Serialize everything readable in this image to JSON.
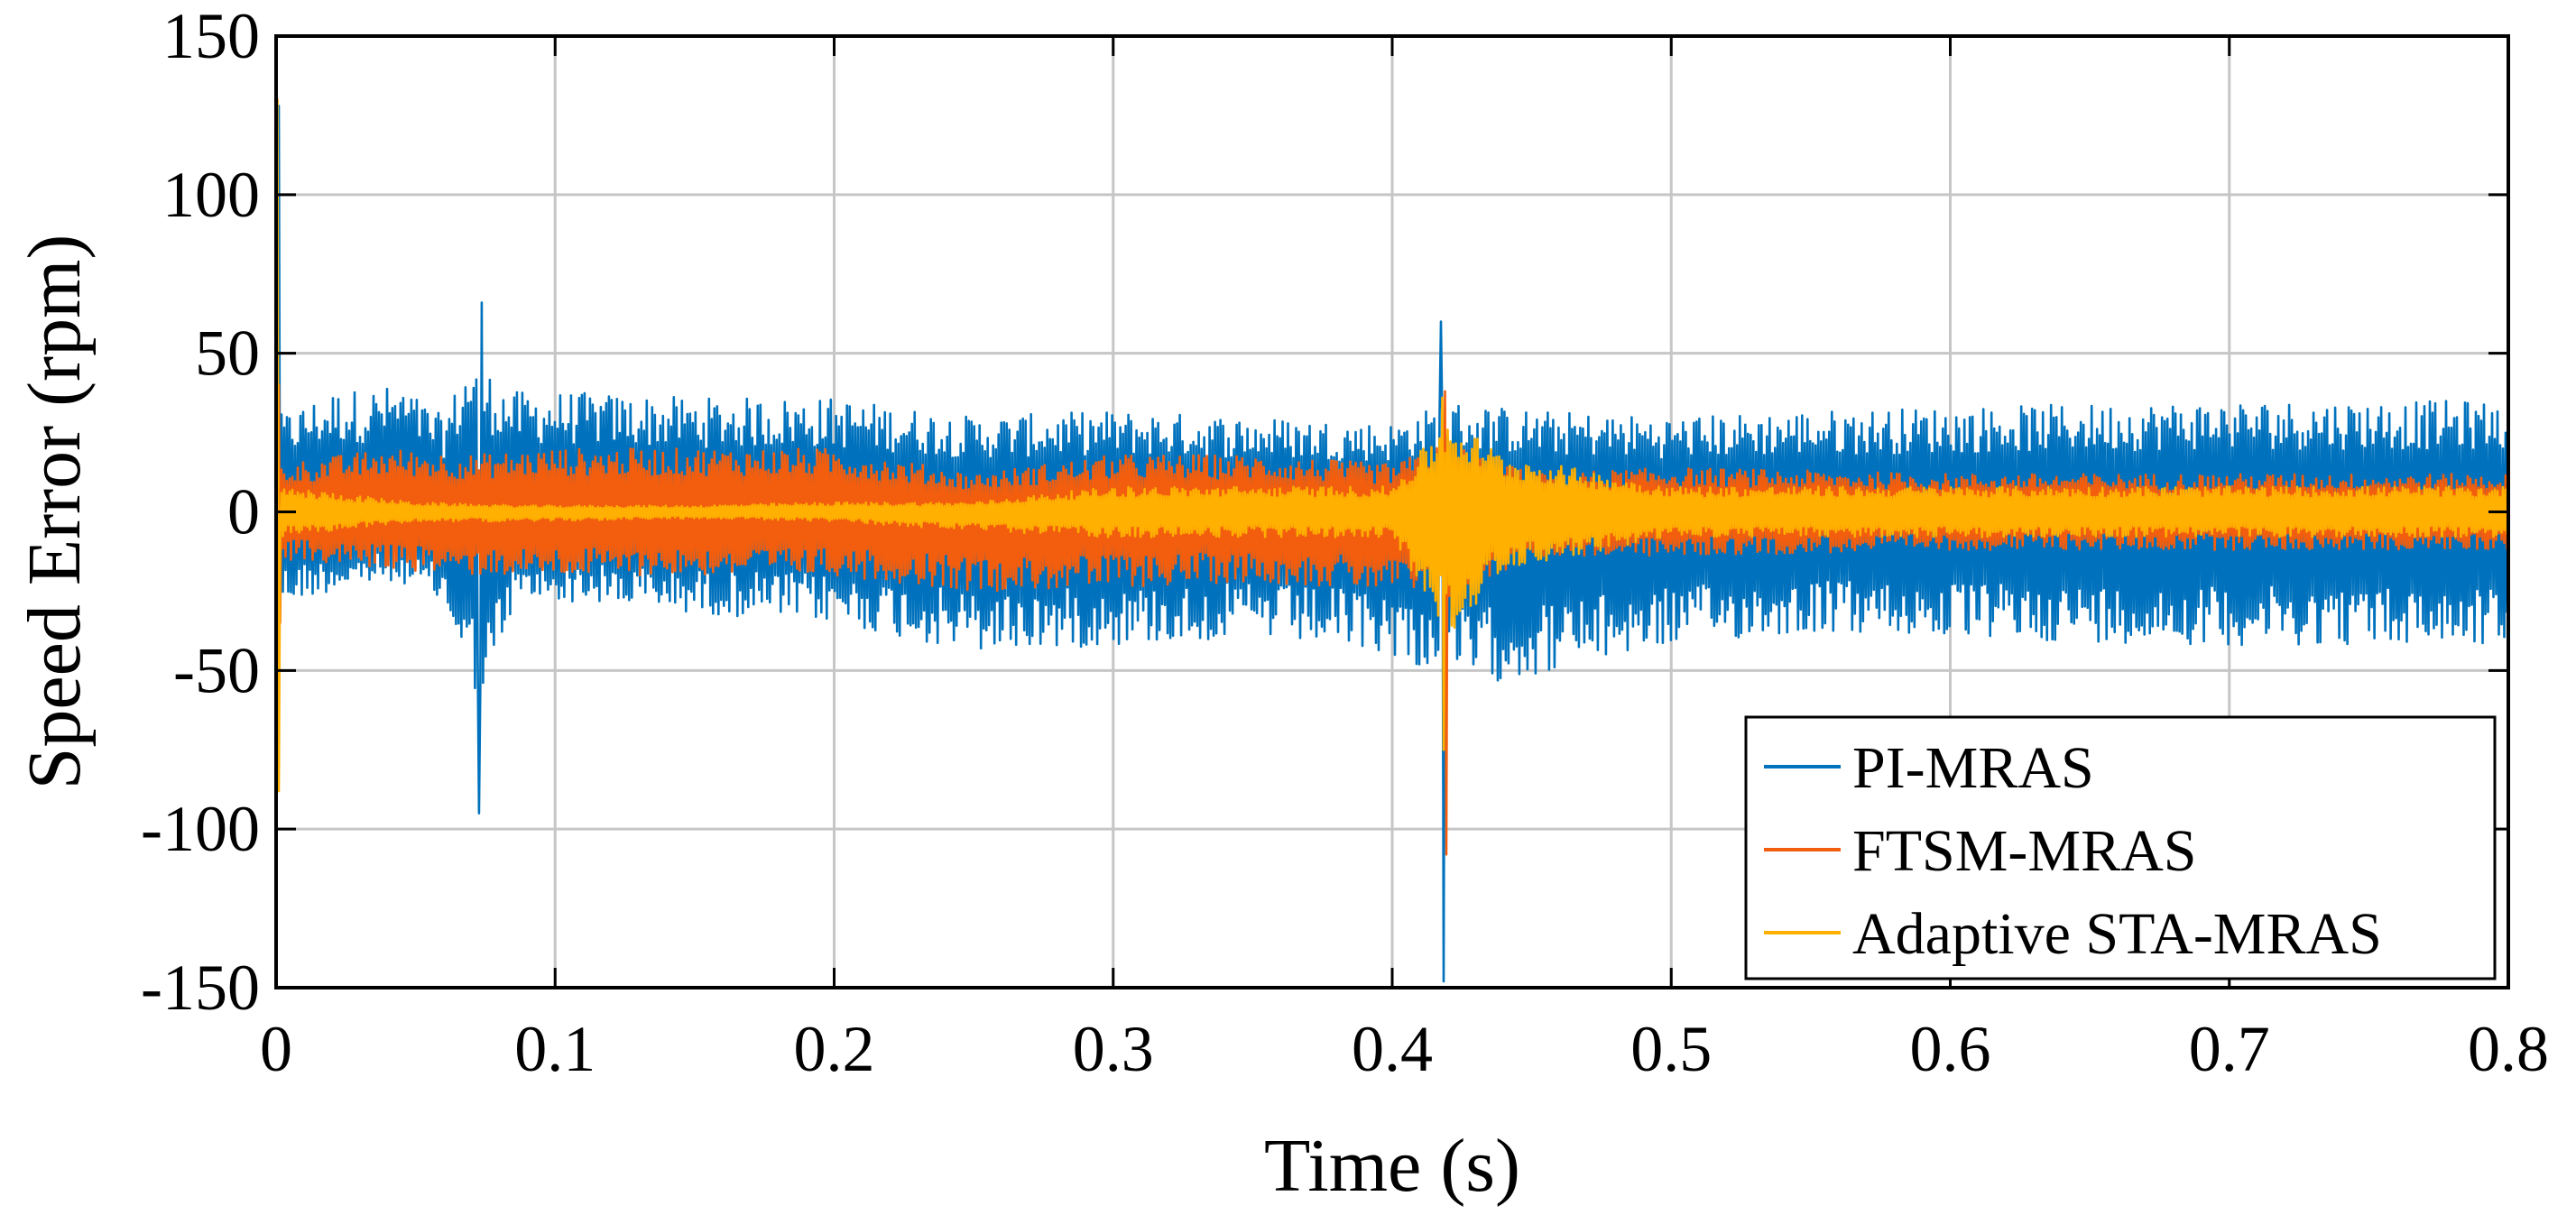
{
  "chart_data": {
    "type": "line",
    "title": "",
    "xlabel": "Time (s)",
    "ylabel": "Speed Error (rpm)",
    "xlim": [
      0,
      0.8
    ],
    "ylim": [
      -150,
      150
    ],
    "xticks": [
      0,
      0.1,
      0.2,
      0.3,
      0.4,
      0.5,
      0.6,
      0.7,
      0.8
    ],
    "xtick_labels": [
      "0",
      "0.1",
      "0.2",
      "0.3",
      "0.4",
      "0.5",
      "0.6",
      "0.7",
      "0.8"
    ],
    "yticks": [
      150,
      100,
      50,
      0,
      -50,
      -100,
      -150
    ],
    "ytick_labels": [
      "150",
      "100",
      "50",
      "0",
      "-50",
      "-100",
      "-150"
    ],
    "grid": true,
    "legend_position": "bottom-right",
    "series": [
      {
        "name": "PI-MRAS",
        "color": "#0072BD",
        "envelope": [
          {
            "x": 0.0,
            "upper": 30,
            "lower": -30
          },
          {
            "x": 0.02,
            "upper": 38,
            "lower": -25
          },
          {
            "x": 0.045,
            "upper": 40,
            "lower": -22
          },
          {
            "x": 0.06,
            "upper": 30,
            "lower": -30
          },
          {
            "x": 0.07,
            "upper": 50,
            "lower": -55
          },
          {
            "x": 0.075,
            "upper": 45,
            "lower": -60
          },
          {
            "x": 0.085,
            "upper": 38,
            "lower": -30
          },
          {
            "x": 0.1,
            "upper": 38,
            "lower": -28
          },
          {
            "x": 0.15,
            "upper": 36,
            "lower": -32
          },
          {
            "x": 0.2,
            "upper": 36,
            "lower": -35
          },
          {
            "x": 0.25,
            "upper": 30,
            "lower": -45
          },
          {
            "x": 0.3,
            "upper": 32,
            "lower": -42
          },
          {
            "x": 0.35,
            "upper": 30,
            "lower": -40
          },
          {
            "x": 0.4,
            "upper": 28,
            "lower": -45
          },
          {
            "x": 0.42,
            "upper": 35,
            "lower": -55
          },
          {
            "x": 0.45,
            "upper": 32,
            "lower": -52
          },
          {
            "x": 0.5,
            "upper": 30,
            "lower": -42
          },
          {
            "x": 0.55,
            "upper": 32,
            "lower": -38
          },
          {
            "x": 0.6,
            "upper": 33,
            "lower": -40
          },
          {
            "x": 0.7,
            "upper": 35,
            "lower": -42
          },
          {
            "x": 0.8,
            "upper": 35,
            "lower": -42
          }
        ],
        "spikes": [
          {
            "x": 0.001,
            "value": 128
          },
          {
            "x": 0.0735,
            "value": 66
          },
          {
            "x": 0.0725,
            "value": -95
          },
          {
            "x": 0.4175,
            "value": 60
          },
          {
            "x": 0.4185,
            "value": -148
          }
        ]
      },
      {
        "name": "FTSM-MRAS",
        "color": "#F25E0E",
        "envelope": [
          {
            "x": 0.0,
            "upper": 15,
            "lower": -15
          },
          {
            "x": 0.04,
            "upper": 20,
            "lower": -18
          },
          {
            "x": 0.07,
            "upper": 18,
            "lower": -20
          },
          {
            "x": 0.1,
            "upper": 20,
            "lower": -20
          },
          {
            "x": 0.2,
            "upper": 20,
            "lower": -20
          },
          {
            "x": 0.25,
            "upper": 12,
            "lower": -25
          },
          {
            "x": 0.3,
            "upper": 18,
            "lower": -24
          },
          {
            "x": 0.35,
            "upper": 18,
            "lower": -22
          },
          {
            "x": 0.4,
            "upper": 15,
            "lower": -25
          },
          {
            "x": 0.42,
            "upper": 22,
            "lower": -28
          },
          {
            "x": 0.45,
            "upper": 12,
            "lower": -14
          },
          {
            "x": 0.5,
            "upper": 14,
            "lower": -14
          },
          {
            "x": 0.6,
            "upper": 12,
            "lower": -12
          },
          {
            "x": 0.7,
            "upper": 12,
            "lower": -12
          },
          {
            "x": 0.8,
            "upper": 12,
            "lower": -12
          }
        ],
        "spikes": [
          {
            "x": 0.0012,
            "value": 40
          },
          {
            "x": 0.0015,
            "value": -35
          },
          {
            "x": 0.419,
            "value": 38
          },
          {
            "x": 0.4195,
            "value": -108
          }
        ]
      },
      {
        "name": "Adaptive STA-MRAS",
        "color": "#FFB000",
        "envelope": [
          {
            "x": 0.0,
            "upper": 8,
            "lower": -8
          },
          {
            "x": 0.05,
            "upper": 3,
            "lower": -3
          },
          {
            "x": 0.09,
            "upper": 2,
            "lower": -3
          },
          {
            "x": 0.15,
            "upper": 2,
            "lower": -2
          },
          {
            "x": 0.2,
            "upper": 3,
            "lower": -3
          },
          {
            "x": 0.25,
            "upper": 3,
            "lower": -6
          },
          {
            "x": 0.3,
            "upper": 8,
            "lower": -8
          },
          {
            "x": 0.35,
            "upper": 8,
            "lower": -8
          },
          {
            "x": 0.4,
            "upper": 8,
            "lower": -8
          },
          {
            "x": 0.42,
            "upper": 30,
            "lower": -40
          },
          {
            "x": 0.44,
            "upper": 18,
            "lower": -18
          },
          {
            "x": 0.5,
            "upper": 8,
            "lower": -8
          },
          {
            "x": 0.6,
            "upper": 8,
            "lower": -8
          },
          {
            "x": 0.7,
            "upper": 8,
            "lower": -8
          },
          {
            "x": 0.8,
            "upper": 8,
            "lower": -8
          }
        ],
        "spikes": [
          {
            "x": 0.0005,
            "value": 130
          },
          {
            "x": 0.0008,
            "value": -88
          },
          {
            "x": 0.418,
            "value": 36
          },
          {
            "x": 0.4183,
            "value": -75
          }
        ]
      }
    ]
  }
}
